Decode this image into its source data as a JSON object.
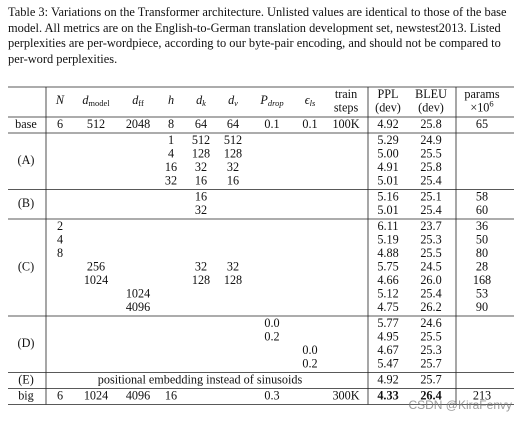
{
  "caption": "Table 3: Variations on the Transformer architecture. Unlisted values are identical to those of the base model. All metrics are on the English-to-German translation development set, newstest2013. Listed perplexities are per-wordpiece, according to our byte-pair encoding, and should not be compared to per-word perplexities.",
  "header": [
    {
      "key": "N",
      "lines": [
        [
          {
            "t": "N",
            "i": true
          }
        ]
      ]
    },
    {
      "key": "d_model",
      "lines": [
        [
          {
            "t": "d",
            "i": true
          },
          {
            "t": "model",
            "sub": true
          }
        ]
      ]
    },
    {
      "key": "d_ff",
      "lines": [
        [
          {
            "t": "d",
            "i": true
          },
          {
            "t": "ff",
            "sub": true
          }
        ]
      ]
    },
    {
      "key": "h",
      "lines": [
        [
          {
            "t": "h",
            "i": true
          }
        ]
      ]
    },
    {
      "key": "d_k",
      "lines": [
        [
          {
            "t": "d",
            "i": true
          },
          {
            "t": "k",
            "sub": true,
            "i": true
          }
        ]
      ]
    },
    {
      "key": "d_v",
      "lines": [
        [
          {
            "t": "d",
            "i": true
          },
          {
            "t": "v",
            "sub": true,
            "i": true
          }
        ]
      ]
    },
    {
      "key": "P_drop",
      "lines": [
        [
          {
            "t": "P",
            "i": true
          },
          {
            "t": "drop",
            "sub": true,
            "i": true
          }
        ]
      ]
    },
    {
      "key": "eps_ls",
      "lines": [
        [
          {
            "t": "ϵ",
            "i": true
          },
          {
            "t": "ls",
            "sub": true,
            "i": true
          }
        ]
      ]
    },
    {
      "key": "steps",
      "lines": [
        [
          {
            "t": "train"
          }
        ],
        [
          {
            "t": "steps"
          }
        ]
      ]
    },
    {
      "key": "PPL",
      "lines": [
        [
          {
            "t": "PPL"
          }
        ],
        [
          {
            "t": "(dev)"
          }
        ]
      ]
    },
    {
      "key": "BLEU",
      "lines": [
        [
          {
            "t": "BLEU"
          }
        ],
        [
          {
            "t": "(dev)"
          }
        ]
      ]
    },
    {
      "key": "params",
      "lines": [
        [
          {
            "t": "params"
          }
        ],
        [
          {
            "t": "×10"
          },
          {
            "t": "6",
            "sup": true
          }
        ]
      ]
    }
  ],
  "groups": [
    {
      "label": "base",
      "rows": [
        {
          "N": "6",
          "d_model": "512",
          "d_ff": "2048",
          "h": "8",
          "d_k": "64",
          "d_v": "64",
          "P_drop": "0.1",
          "eps_ls": "0.1",
          "steps": "100K",
          "PPL": "4.92",
          "BLEU": "25.8",
          "params": "65"
        }
      ]
    },
    {
      "label": "(A)",
      "rows": [
        {
          "h": "1",
          "d_k": "512",
          "d_v": "512",
          "PPL": "5.29",
          "BLEU": "24.9"
        },
        {
          "h": "4",
          "d_k": "128",
          "d_v": "128",
          "PPL": "5.00",
          "BLEU": "25.5"
        },
        {
          "h": "16",
          "d_k": "32",
          "d_v": "32",
          "PPL": "4.91",
          "BLEU": "25.8"
        },
        {
          "h": "32",
          "d_k": "16",
          "d_v": "16",
          "PPL": "5.01",
          "BLEU": "25.4"
        }
      ]
    },
    {
      "label": "(B)",
      "rows": [
        {
          "d_k": "16",
          "PPL": "5.16",
          "BLEU": "25.1",
          "params": "58"
        },
        {
          "d_k": "32",
          "PPL": "5.01",
          "BLEU": "25.4",
          "params": "60"
        }
      ]
    },
    {
      "label": "(C)",
      "rows": [
        {
          "N": "2",
          "PPL": "6.11",
          "BLEU": "23.7",
          "params": "36"
        },
        {
          "N": "4",
          "PPL": "5.19",
          "BLEU": "25.3",
          "params": "50"
        },
        {
          "N": "8",
          "PPL": "4.88",
          "BLEU": "25.5",
          "params": "80"
        },
        {
          "d_model": "256",
          "d_k": "32",
          "d_v": "32",
          "PPL": "5.75",
          "BLEU": "24.5",
          "params": "28"
        },
        {
          "d_model": "1024",
          "d_k": "128",
          "d_v": "128",
          "PPL": "4.66",
          "BLEU": "26.0",
          "params": "168"
        },
        {
          "d_ff": "1024",
          "PPL": "5.12",
          "BLEU": "25.4",
          "params": "53"
        },
        {
          "d_ff": "4096",
          "PPL": "4.75",
          "BLEU": "26.2",
          "params": "90"
        }
      ]
    },
    {
      "label": "(D)",
      "rows": [
        {
          "P_drop": "0.0",
          "PPL": "5.77",
          "BLEU": "24.6"
        },
        {
          "P_drop": "0.2",
          "PPL": "4.95",
          "BLEU": "25.5"
        },
        {
          "eps_ls": "0.0",
          "PPL": "4.67",
          "BLEU": "25.3"
        },
        {
          "eps_ls": "0.2",
          "PPL": "5.47",
          "BLEU": "25.7"
        }
      ]
    },
    {
      "label": "(E)",
      "rows": [
        {
          "note": "positional embedding instead of sinusoids",
          "PPL": "4.92",
          "BLEU": "25.7"
        }
      ]
    },
    {
      "label": "big",
      "rows": [
        {
          "N": "6",
          "d_model": "1024",
          "d_ff": "4096",
          "h": "16",
          "P_drop": "0.3",
          "steps": "300K",
          "PPL": {
            "text": "4.33",
            "bold": true
          },
          "BLEU": {
            "text": "26.4",
            "bold": true
          },
          "params": "213"
        }
      ]
    }
  ],
  "watermark": "CSDN @KiraFenvy"
}
